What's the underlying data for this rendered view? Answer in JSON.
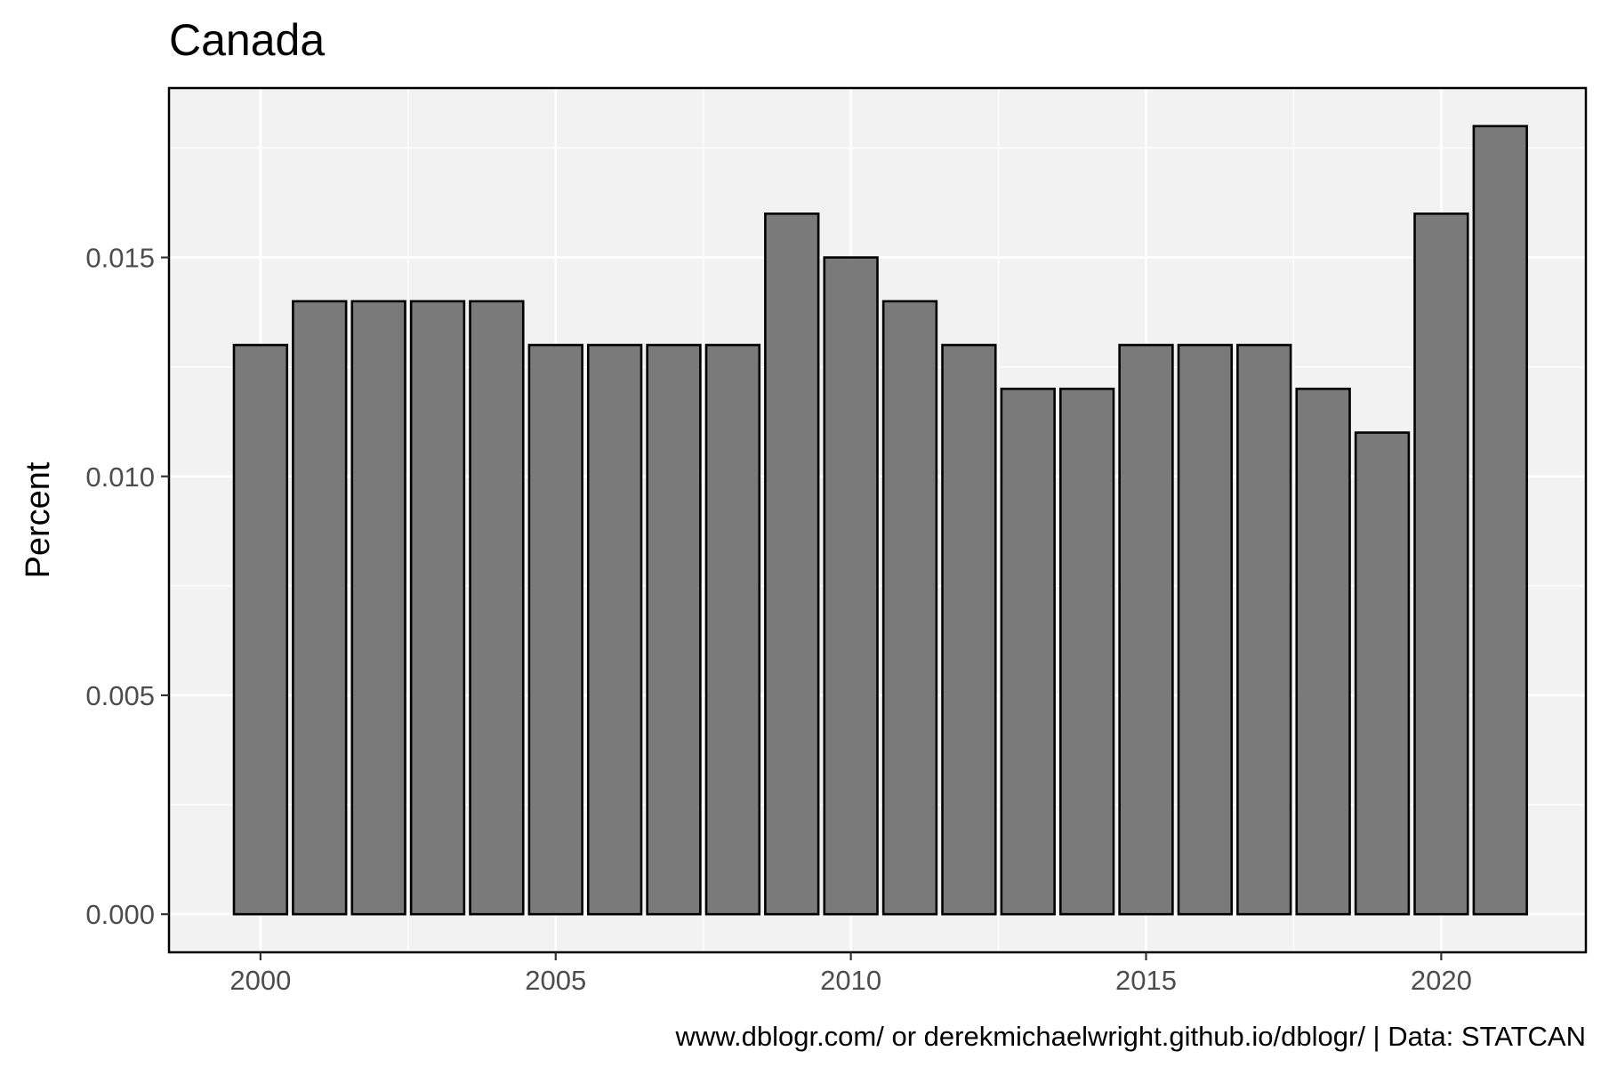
{
  "chart_data": {
    "type": "bar",
    "title": "Canada",
    "xlabel": "",
    "ylabel": "Percent",
    "caption": "www.dblogr.com/ or derekmichaelwright.github.io/dblogr/ | Data: STATCAN",
    "x": [
      2000,
      2001,
      2002,
      2003,
      2004,
      2005,
      2006,
      2007,
      2008,
      2009,
      2010,
      2011,
      2012,
      2013,
      2014,
      2015,
      2016,
      2017,
      2018,
      2019,
      2020,
      2021
    ],
    "values": [
      0.013,
      0.014,
      0.014,
      0.014,
      0.014,
      0.013,
      0.013,
      0.013,
      0.013,
      0.016,
      0.015,
      0.014,
      0.013,
      0.012,
      0.012,
      0.013,
      0.013,
      0.013,
      0.012,
      0.011,
      0.016,
      0.018
    ],
    "xlim": [
      1998.45,
      2022.45
    ],
    "ylim": [
      -0.00087,
      0.01887
    ],
    "x_ticks": [
      2000,
      2005,
      2010,
      2015,
      2020
    ],
    "x_tick_labels": [
      "2000",
      "2005",
      "2010",
      "2015",
      "2020"
    ],
    "y_ticks": [
      0,
      0.005,
      0.01,
      0.015
    ],
    "y_tick_labels": [
      "0.000",
      "0.005",
      "0.010",
      "0.015"
    ],
    "grid": true,
    "legend": "none",
    "colors": {
      "bar_fill": "#7a7a7a",
      "bar_stroke": "#000000",
      "panel_background": "#f2f2f2",
      "grid": "#ffffff",
      "axis_text": "#4d4d4d",
      "text": "#000000"
    }
  }
}
